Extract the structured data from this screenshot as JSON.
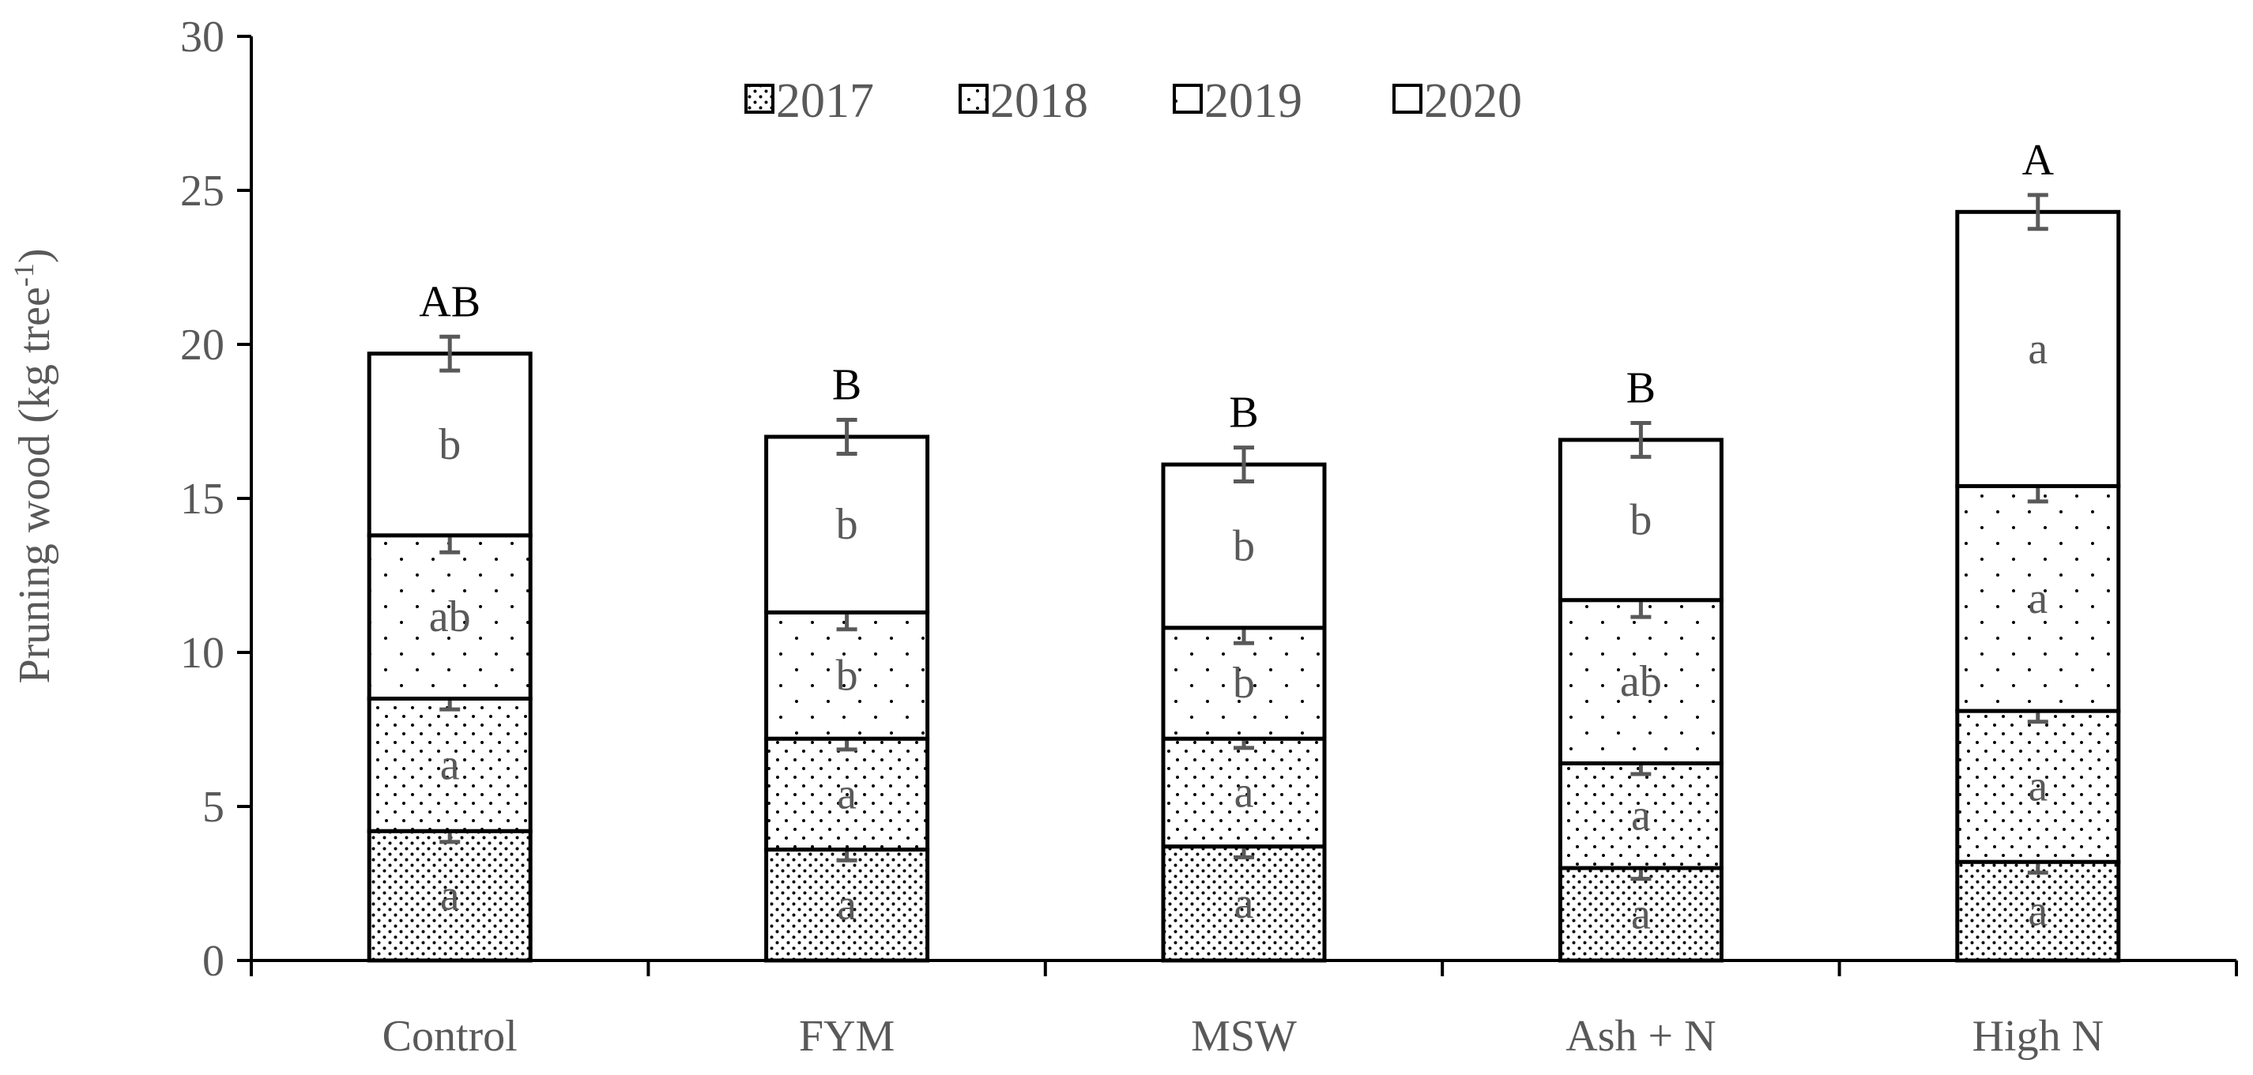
{
  "chart_data": {
    "type": "bar",
    "stacked": true,
    "title": "",
    "xlabel": "",
    "ylabel": "Pruning wood (kg tree",
    "ylabel_superscript": "-1",
    "ylabel_suffix": ")",
    "ylim": [
      0,
      30
    ],
    "yticks": [
      0,
      5,
      10,
      15,
      20,
      25,
      30
    ],
    "grid": false,
    "legend_position": "top-center",
    "categories": [
      "Control",
      "FYM",
      "MSW",
      "Ash + N",
      "High N"
    ],
    "series": [
      {
        "name": "2017",
        "pattern": "dense-dots",
        "values": [
          4.2,
          3.6,
          3.7,
          3.0,
          3.2
        ],
        "errors": [
          0.35,
          0.35,
          0.35,
          0.35,
          0.35
        ],
        "letters": [
          "a",
          "a",
          "a",
          "a",
          "a"
        ]
      },
      {
        "name": "2018",
        "pattern": "dots",
        "values": [
          4.3,
          3.6,
          3.5,
          3.4,
          4.9
        ],
        "errors": [
          0.35,
          0.35,
          0.3,
          0.35,
          0.35
        ],
        "letters": [
          "a",
          "a",
          "a",
          "a",
          "a"
        ]
      },
      {
        "name": "2019",
        "pattern": "sparse-dots",
        "values": [
          5.3,
          4.1,
          3.6,
          5.3,
          7.3
        ],
        "errors": [
          0.55,
          0.55,
          0.5,
          0.55,
          0.5
        ],
        "letters": [
          "ab",
          "b",
          "b",
          "ab",
          "a"
        ]
      },
      {
        "name": "2020",
        "pattern": "blank",
        "values": [
          5.9,
          5.7,
          5.3,
          5.2,
          8.9
        ],
        "errors": [
          0.55,
          0.55,
          0.55,
          0.55,
          0.55
        ],
        "letters": [
          "b",
          "b",
          "b",
          "b",
          "a"
        ]
      }
    ],
    "total_letters": [
      "AB",
      "B",
      "B",
      "B",
      "A"
    ]
  },
  "colors": {
    "axis": "#000000",
    "text": "#595959",
    "error_bar": "#595959",
    "bar_outline": "#000000",
    "dot": "#000000"
  }
}
